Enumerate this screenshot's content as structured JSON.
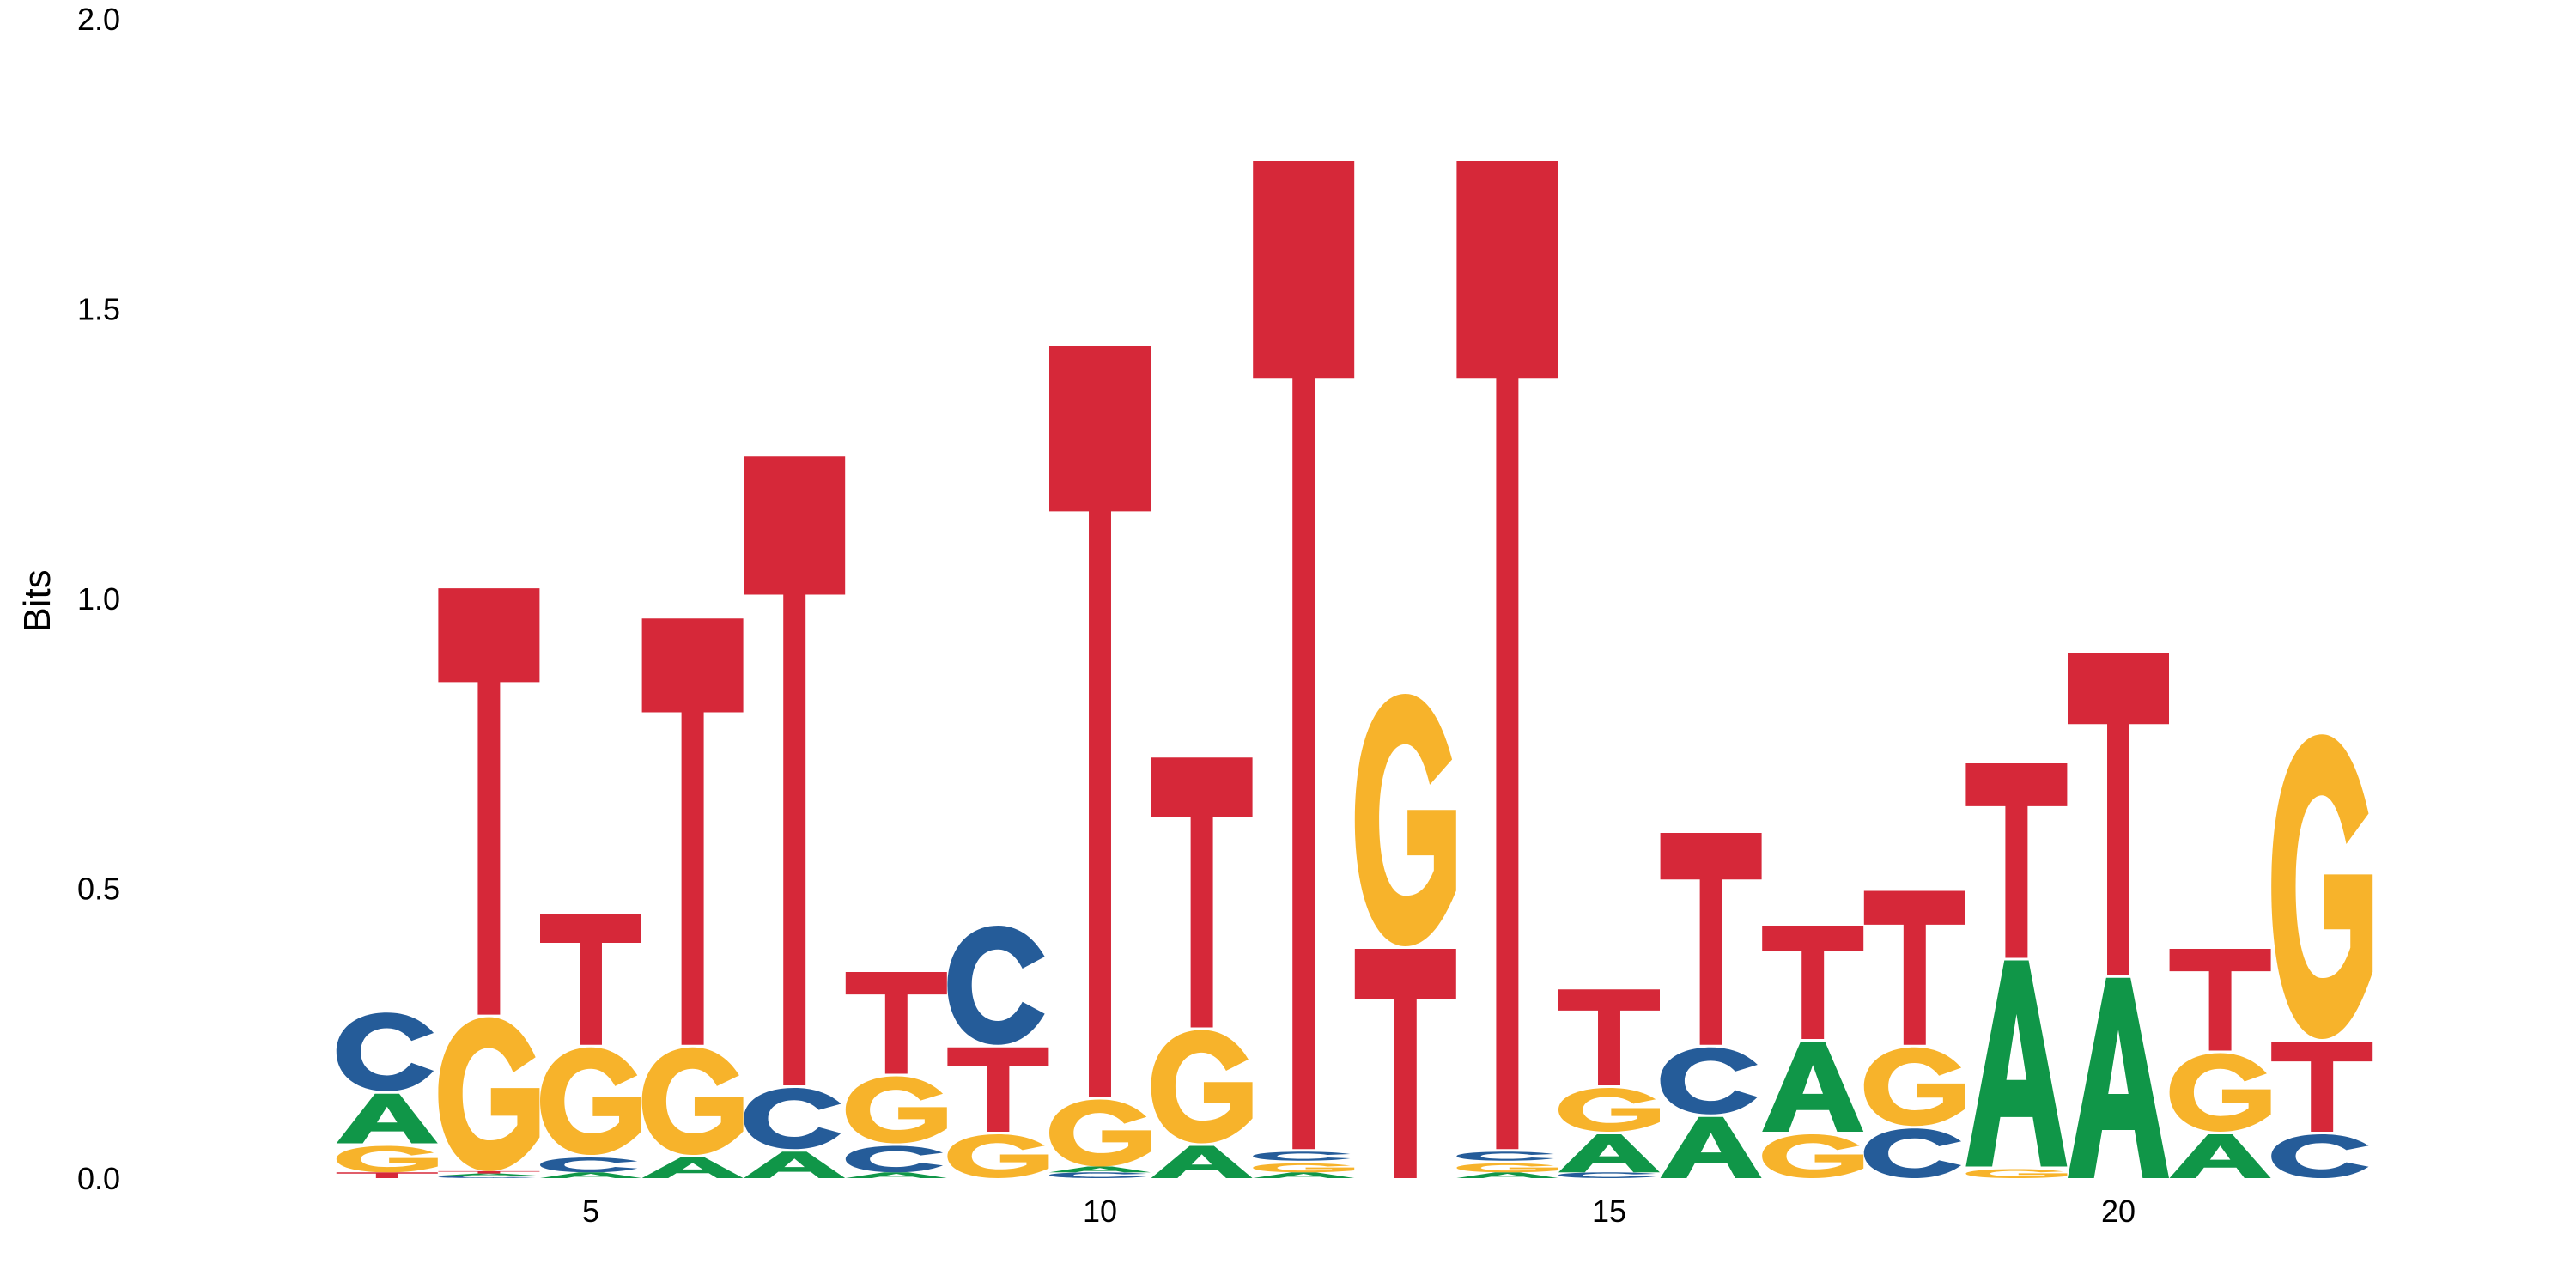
{
  "chart_data": {
    "type": "sequence_logo",
    "title": "",
    "xlabel": "",
    "ylabel": "Bits",
    "ylim": [
      0,
      2
    ],
    "yticks": [
      "0.0",
      "0.5",
      "1.0",
      "1.5",
      "2.0"
    ],
    "xticks": [
      5,
      10,
      15,
      20
    ],
    "grid": false,
    "legend": "none",
    "colors": {
      "A": "#109648",
      "C": "#255c99",
      "G": "#f7b32b",
      "T": "#d62839"
    },
    "positions": [
      {
        "pos": 3,
        "letters": [
          [
            "T",
            0.01
          ],
          [
            "G",
            0.05
          ],
          [
            "A",
            0.09
          ],
          [
            "C",
            0.14
          ]
        ]
      },
      {
        "pos": 4,
        "letters": [
          [
            "C",
            0.004
          ],
          [
            "A",
            0.004
          ],
          [
            "T",
            0.004
          ],
          [
            "G",
            0.27
          ],
          [
            "T",
            0.74
          ]
        ]
      },
      {
        "pos": 5,
        "letters": [
          [
            "A",
            0.01
          ],
          [
            "C",
            0.03
          ],
          [
            "G",
            0.19
          ],
          [
            "T",
            0.23
          ]
        ]
      },
      {
        "pos": 6,
        "letters": [
          [
            "A",
            0.04
          ],
          [
            "G",
            0.19
          ],
          [
            "T",
            0.74
          ]
        ]
      },
      {
        "pos": 7,
        "letters": [
          [
            "A",
            0.05
          ],
          [
            "C",
            0.11
          ],
          [
            "T",
            1.09
          ]
        ]
      },
      {
        "pos": 8,
        "letters": [
          [
            "A",
            0.01
          ],
          [
            "C",
            0.05
          ],
          [
            "G",
            0.12
          ],
          [
            "T",
            0.18
          ]
        ]
      },
      {
        "pos": 9,
        "letters": [
          [
            "G",
            0.08
          ],
          [
            "T",
            0.15
          ],
          [
            "C",
            0.21
          ]
        ]
      },
      {
        "pos": 10,
        "letters": [
          [
            "C",
            0.01
          ],
          [
            "A",
            0.01
          ],
          [
            "G",
            0.12
          ],
          [
            "T",
            1.3
          ]
        ]
      },
      {
        "pos": 11,
        "letters": [
          [
            "A",
            0.06
          ],
          [
            "G",
            0.2
          ],
          [
            "T",
            0.47
          ]
        ]
      },
      {
        "pos": 12,
        "letters": [
          [
            "A",
            0.01
          ],
          [
            "G",
            0.02
          ],
          [
            "C",
            0.02
          ],
          [
            "T",
            1.71
          ]
        ]
      },
      {
        "pos": 13,
        "letters": [
          [
            "T",
            0.4
          ],
          [
            "G",
            0.44
          ]
        ]
      },
      {
        "pos": 14,
        "letters": [
          [
            "A",
            0.01
          ],
          [
            "G",
            0.02
          ],
          [
            "C",
            0.02
          ],
          [
            "T",
            1.71
          ]
        ]
      },
      {
        "pos": 15,
        "letters": [
          [
            "C",
            0.01
          ],
          [
            "A",
            0.07
          ],
          [
            "G",
            0.08
          ],
          [
            "T",
            0.17
          ]
        ]
      },
      {
        "pos": 16,
        "letters": [
          [
            "A",
            0.11
          ],
          [
            "C",
            0.12
          ],
          [
            "T",
            0.37
          ]
        ]
      },
      {
        "pos": 17,
        "letters": [
          [
            "G",
            0.08
          ],
          [
            "A",
            0.16
          ],
          [
            "T",
            0.2
          ]
        ]
      },
      {
        "pos": 18,
        "letters": [
          [
            "C",
            0.09
          ],
          [
            "G",
            0.14
          ],
          [
            "T",
            0.27
          ]
        ]
      },
      {
        "pos": 19,
        "letters": [
          [
            "G",
            0.02
          ],
          [
            "A",
            0.36
          ],
          [
            "T",
            0.34
          ]
        ]
      },
      {
        "pos": 20,
        "letters": [
          [
            "A",
            0.35
          ],
          [
            "T",
            0.56
          ]
        ]
      },
      {
        "pos": 21,
        "letters": [
          [
            "A",
            0.08
          ],
          [
            "G",
            0.14
          ],
          [
            "T",
            0.18
          ]
        ]
      },
      {
        "pos": 22,
        "letters": [
          [
            "C",
            0.08
          ],
          [
            "T",
            0.16
          ],
          [
            "G",
            0.53
          ]
        ]
      }
    ]
  }
}
